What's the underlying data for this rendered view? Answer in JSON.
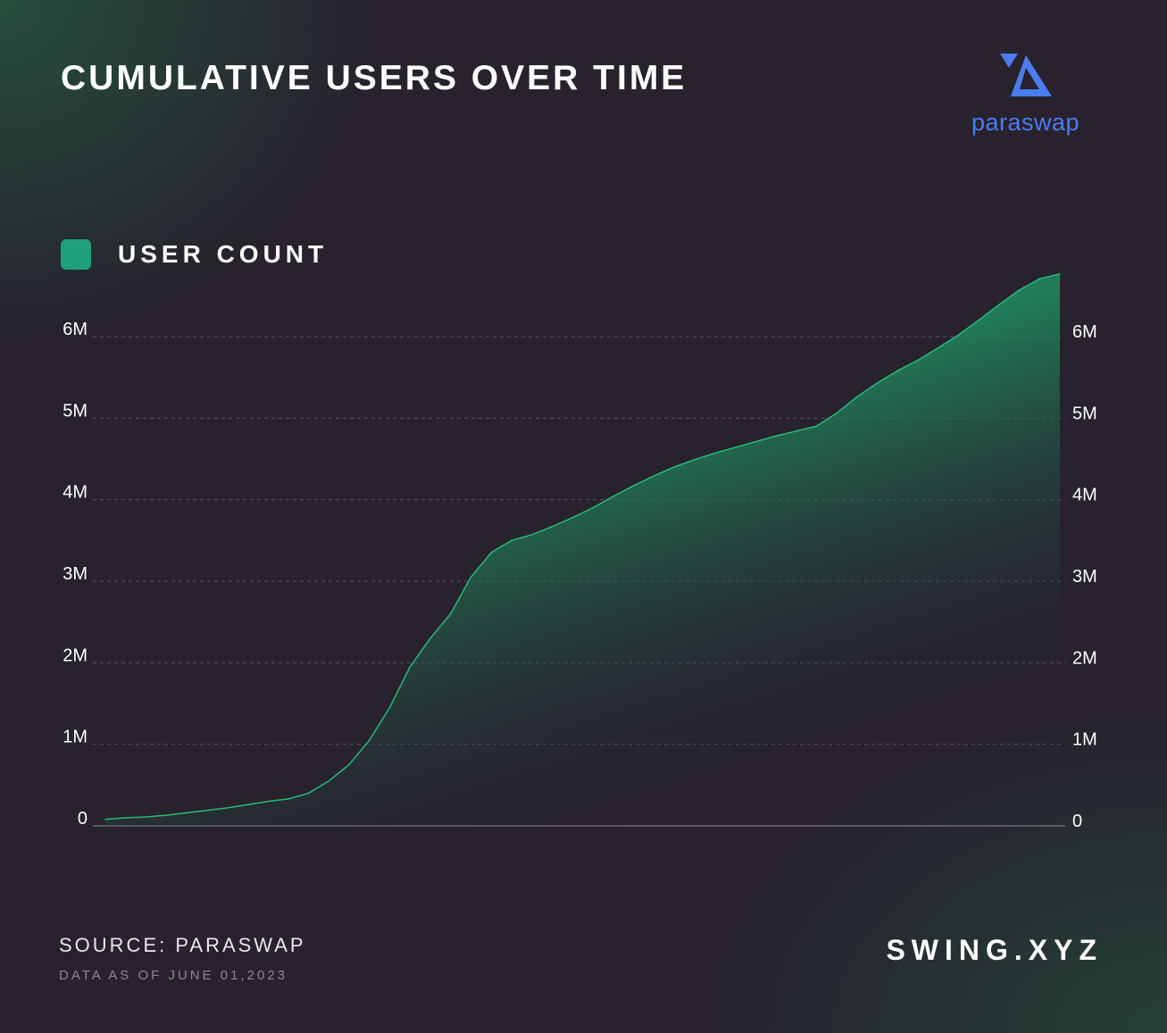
{
  "header": {
    "title": "CUMULATIVE USERS OVER TIME"
  },
  "logo": {
    "text": "paraswap",
    "icon": "paraswap-logo-icon",
    "color": "#4b7cf0"
  },
  "legend": {
    "label": "USER COUNT",
    "color": "#1ea07a"
  },
  "footer": {
    "source": "SOURCE: PARASWAP",
    "as_of": "DATA AS OF JUNE 01,2023",
    "brand": "SWING.XYZ"
  },
  "colors": {
    "background": "#27222d",
    "area_top": "#22a06b",
    "line": "#2bb879",
    "grid": "#5a5562",
    "axis_text": "#ffffff"
  },
  "chart_data": {
    "type": "area",
    "title": "CUMULATIVE USERS OVER TIME",
    "series": [
      {
        "name": "USER COUNT",
        "values": [
          0.08,
          0.1,
          0.11,
          0.13,
          0.16,
          0.19,
          0.22,
          0.26,
          0.3,
          0.33,
          0.4,
          0.55,
          0.75,
          1.05,
          1.45,
          1.95,
          2.3,
          2.6,
          3.05,
          3.35,
          3.5,
          3.57,
          3.67,
          3.78,
          3.9,
          4.04,
          4.17,
          4.29,
          4.4,
          4.49,
          4.57,
          4.64,
          4.71,
          4.78,
          4.84,
          4.9,
          5.06,
          5.26,
          5.43,
          5.58,
          5.71,
          5.86,
          6.02,
          6.2,
          6.39,
          6.57,
          6.71,
          6.77
        ]
      }
    ],
    "yticks": [
      "0",
      "1M",
      "2M",
      "3M",
      "4M",
      "5M",
      "6M"
    ],
    "ylim": [
      0,
      6.8
    ],
    "y_unit": "M",
    "xlabel": "",
    "ylabel": "",
    "grid": true,
    "legend_position": "top-left",
    "dual_y_axis": true
  }
}
